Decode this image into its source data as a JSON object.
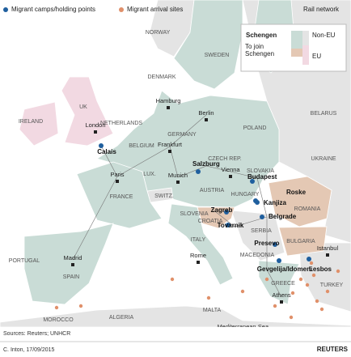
{
  "legend": {
    "camps": "Migrant camps/holding points",
    "arrival": "Migrant arrival sites",
    "rail": "Rail network",
    "schengen": "Schengen",
    "non_eu": "Non-EU",
    "to_join": "To join Schengen",
    "eu": "EU"
  },
  "countries": [
    "NORWAY",
    "SWEDEN",
    "DENMARK",
    "IRELAND",
    "UK",
    "NETHERLANDS",
    "GERMANY",
    "POLAND",
    "BELARUS",
    "UKRAINE",
    "CZECH REP.",
    "SLOVAKIA",
    "AUSTRIA",
    "HUNGARY",
    "FRANCE",
    "SWITZ.",
    "LUX.",
    "BELGIUM",
    "ROMANIA",
    "SLOVENIA",
    "CROATIA",
    "SERBIA",
    "BULGARIA",
    "ITALY",
    "PORTUGAL",
    "SPAIN",
    "MACEDONIA",
    "GREECE",
    "TURKEY",
    "MOROCCO",
    "ALGERIA",
    "MALTA"
  ],
  "cities": [
    "London",
    "Hamburg",
    "Berlin",
    "Frankfurt",
    "Paris",
    "Munich",
    "Vienna",
    "Madrid",
    "Rome",
    "Athens",
    "Istanbul"
  ],
  "camps": [
    "Calais",
    "Salzburg",
    "Budapest",
    "Roske",
    "Kanjiza",
    "Zagreb",
    "Belgrade",
    "Tovarnik",
    "Presevo",
    "Gevgelija/Idomeni",
    "Lesbos"
  ],
  "sea": "Mediterranean Sea",
  "footer": {
    "sources": "Sources: Reuters; UNHCR",
    "credit": "C. Inton, 17/09/2015",
    "brand": "REUTERS"
  }
}
